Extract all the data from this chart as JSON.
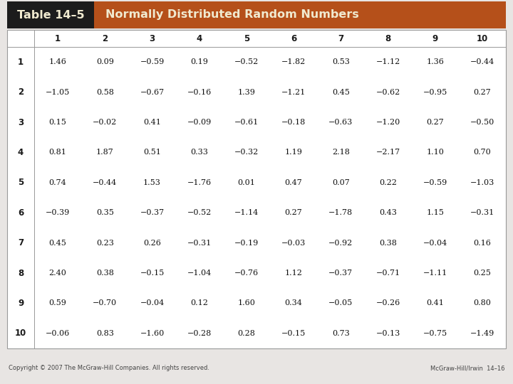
{
  "title_left": "Table 14–5",
  "title_right": "Normally Distributed Random Numbers",
  "title_left_bg": "#1c1c1c",
  "title_right_bg": "#b5501a",
  "title_text_color": "#f0ead0",
  "col_headers": [
    "1",
    "2",
    "3",
    "4",
    "5",
    "6",
    "7",
    "8",
    "9",
    "10"
  ],
  "row_headers": [
    "1",
    "2",
    "3",
    "4",
    "5",
    "6",
    "7",
    "8",
    "9",
    "10"
  ],
  "table_data": [
    [
      "1.46",
      "0.09",
      "−0.59",
      "0.19",
      "−0.52",
      "−1.82",
      "0.53",
      "−1.12",
      "1.36",
      "−0.44"
    ],
    [
      "−1.05",
      "0.58",
      "−0.67",
      "−0.16",
      "1.39",
      "−1.21",
      "0.45",
      "−0.62",
      "−0.95",
      "0.27"
    ],
    [
      "0.15",
      "−0.02",
      "0.41",
      "−0.09",
      "−0.61",
      "−0.18",
      "−0.63",
      "−1.20",
      "0.27",
      "−0.50"
    ],
    [
      "0.81",
      "1.87",
      "0.51",
      "0.33",
      "−0.32",
      "1.19",
      "2.18",
      "−2.17",
      "1.10",
      "0.70"
    ],
    [
      "0.74",
      "−0.44",
      "1.53",
      "−1.76",
      "0.01",
      "0.47",
      "0.07",
      "0.22",
      "−0.59",
      "−1.03"
    ],
    [
      "−0.39",
      "0.35",
      "−0.37",
      "−0.52",
      "−1.14",
      "0.27",
      "−1.78",
      "0.43",
      "1.15",
      "−0.31"
    ],
    [
      "0.45",
      "0.23",
      "0.26",
      "−0.31",
      "−0.19",
      "−0.03",
      "−0.92",
      "0.38",
      "−0.04",
      "0.16"
    ],
    [
      "2.40",
      "0.38",
      "−0.15",
      "−1.04",
      "−0.76",
      "1.12",
      "−0.37",
      "−0.71",
      "−1.11",
      "0.25"
    ],
    [
      "0.59",
      "−0.70",
      "−0.04",
      "0.12",
      "1.60",
      "0.34",
      "−0.05",
      "−0.26",
      "0.41",
      "0.80"
    ],
    [
      "−0.06",
      "0.83",
      "−1.60",
      "−0.28",
      "0.28",
      "−0.15",
      "0.73",
      "−0.13",
      "−0.75",
      "−1.49"
    ]
  ],
  "footer_left": "Copyright © 2007 The McGraw-Hill Companies. All rights reserved.",
  "footer_right": "McGraw-Hill/Irwin  14–16",
  "bg_color": "#e8e5e3",
  "table_bg": "#ffffff",
  "border_color": "#999999",
  "header_border_color": "#cccccc"
}
